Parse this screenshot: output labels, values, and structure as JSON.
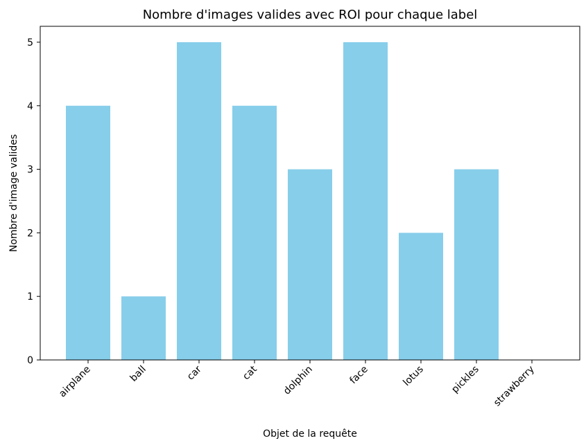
{
  "chart_data": {
    "type": "bar",
    "title": "Nombre d'images valides avec ROI pour chaque label",
    "xlabel": "Objet de la requête",
    "ylabel": "Nombre d'image valides",
    "categories": [
      "airplane",
      "ball",
      "car",
      "cat",
      "dolphin",
      "face",
      "lotus",
      "pickles",
      "strawberry"
    ],
    "values": [
      4,
      1,
      5,
      4,
      3,
      5,
      2,
      3,
      0
    ],
    "ylim": [
      0,
      5.25
    ],
    "yticks": [
      "0",
      "1",
      "2",
      "3",
      "4",
      "5"
    ],
    "grid": false,
    "bar_color": "#87CEEB"
  }
}
